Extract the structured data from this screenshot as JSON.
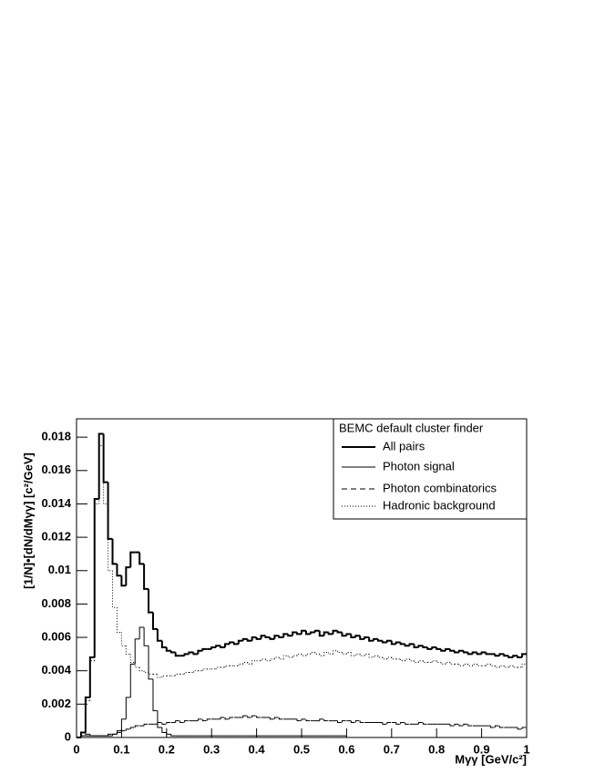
{
  "chart_data": {
    "type": "histogram",
    "x_label": "Mγγ  [GeV/c²]",
    "y_label": "[1/N]•[dN/dMγγ]  [c²/GeV]",
    "legend_title": "BEMC default cluster finder",
    "legend_position": "upper right",
    "xlim": [
      0,
      1
    ],
    "ylim": [
      0,
      0.0191
    ],
    "xticks": [
      0,
      0.1,
      0.2,
      0.3,
      0.4,
      0.5,
      0.6,
      0.7,
      0.8,
      0.9,
      1
    ],
    "yticks": [
      0,
      0.002,
      0.004,
      0.006,
      0.008,
      0.01,
      0.012,
      0.014,
      0.016,
      0.018
    ],
    "bins": [
      0,
      0.01,
      0.02,
      0.03,
      0.04,
      0.05,
      0.06,
      0.07,
      0.08,
      0.09,
      0.1,
      0.11,
      0.12,
      0.13,
      0.14,
      0.15,
      0.16,
      0.17,
      0.18,
      0.19,
      0.2,
      0.21,
      0.22,
      0.23,
      0.24,
      0.25,
      0.26,
      0.27,
      0.28,
      0.29,
      0.3,
      0.31,
      0.32,
      0.33,
      0.34,
      0.35,
      0.36,
      0.37,
      0.38,
      0.39,
      0.4,
      0.41,
      0.42,
      0.43,
      0.44,
      0.45,
      0.46,
      0.47,
      0.48,
      0.49,
      0.5,
      0.51,
      0.52,
      0.53,
      0.54,
      0.55,
      0.56,
      0.57,
      0.58,
      0.59,
      0.6,
      0.61,
      0.62,
      0.63,
      0.64,
      0.65,
      0.66,
      0.67,
      0.68,
      0.69,
      0.7,
      0.71,
      0.72,
      0.73,
      0.74,
      0.75,
      0.76,
      0.77,
      0.78,
      0.79,
      0.8,
      0.81,
      0.82,
      0.83,
      0.84,
      0.85,
      0.86,
      0.87,
      0.88,
      0.89,
      0.9,
      0.91,
      0.92,
      0.93,
      0.94,
      0.95,
      0.96,
      0.97,
      0.98,
      0.99,
      1
    ],
    "series": [
      {
        "name": "All pairs",
        "color": "#000000",
        "style": "solid",
        "width": 2,
        "values": [
          0,
          0.0003,
          0.0024,
          0.0048,
          0.0143,
          0.0182,
          0.0153,
          0.0119,
          0.0104,
          0.0097,
          0.0091,
          0.0102,
          0.0111,
          0.0111,
          0.0104,
          0.0089,
          0.0075,
          0.0065,
          0.0058,
          0.0054,
          0.0052,
          0.0051,
          0.0049,
          0.0049,
          0.005,
          0.0051,
          0.005,
          0.0052,
          0.0053,
          0.0053,
          0.0054,
          0.0055,
          0.0054,
          0.0056,
          0.0057,
          0.0056,
          0.0058,
          0.0059,
          0.0058,
          0.006,
          0.0059,
          0.0061,
          0.006,
          0.0059,
          0.0061,
          0.006,
          0.0062,
          0.0061,
          0.0063,
          0.0062,
          0.0064,
          0.0062,
          0.0063,
          0.0064,
          0.0061,
          0.0063,
          0.0062,
          0.0064,
          0.0063,
          0.0061,
          0.0062,
          0.006,
          0.0061,
          0.0059,
          0.006,
          0.0058,
          0.0059,
          0.0058,
          0.0057,
          0.0058,
          0.0056,
          0.0057,
          0.0056,
          0.0055,
          0.0056,
          0.0054,
          0.0055,
          0.0054,
          0.0053,
          0.0054,
          0.0053,
          0.0052,
          0.0053,
          0.0052,
          0.0051,
          0.0052,
          0.0051,
          0.005,
          0.0051,
          0.005,
          0.0051,
          0.005,
          0.005,
          0.0049,
          0.005,
          0.0049,
          0.0048,
          0.0049,
          0.0048,
          0.005
        ]
      },
      {
        "name": "Photon signal",
        "color": "#000000",
        "style": "solid",
        "width": 1,
        "values": [
          0,
          0.0003,
          0.0002,
          0.0001,
          0.0001,
          0.0001,
          0.0001,
          0.0001,
          0.0002,
          0.0004,
          0.0011,
          0.0024,
          0.0044,
          0.0059,
          0.0066,
          0.0055,
          0.0035,
          0.0016,
          0.0006,
          0.0003,
          0.0002,
          0.0001,
          0.0001,
          0.0001,
          0.0001,
          0.0001,
          0.0001,
          0.0001,
          0.0001,
          0.0001,
          0.0001,
          0.0001,
          0.0001,
          0.0001,
          0.0001,
          0.0001,
          0.0001,
          0.0001,
          0.0001,
          0.0001,
          0.0001,
          0.0001,
          0.0001,
          0.0001,
          0.0001,
          0.0001,
          0.0001,
          0.0001,
          0.0001,
          0.0001,
          0.0001,
          0.0001,
          0.0001,
          0.0001,
          0.0001,
          0.0001,
          0.0001,
          0.0001,
          0.0001,
          0.0001,
          0,
          0,
          0,
          0,
          0,
          0,
          0,
          0,
          0,
          0,
          0,
          0,
          0,
          0,
          0,
          0,
          0,
          0,
          0,
          0,
          0,
          0,
          0,
          0,
          0,
          0,
          0,
          0,
          0,
          0,
          0,
          0,
          0,
          0,
          0,
          0,
          0,
          0,
          0,
          0
        ]
      },
      {
        "name": "Photon combinatorics",
        "color": "#000000",
        "style": "dashed",
        "width": 1,
        "values": [
          0,
          0.0001,
          0.0001,
          0.0001,
          0.0001,
          0.0001,
          0.0001,
          0.0002,
          0.0002,
          0.0003,
          0.0004,
          0.0005,
          0.0006,
          0.0007,
          0.0007,
          0.0008,
          0.0008,
          0.0008,
          0.0009,
          0.0008,
          0.0009,
          0.0009,
          0.001,
          0.0009,
          0.001,
          0.001,
          0.001,
          0.0011,
          0.001,
          0.0011,
          0.0011,
          0.0011,
          0.0012,
          0.0011,
          0.0012,
          0.0012,
          0.0012,
          0.0013,
          0.0012,
          0.0013,
          0.0012,
          0.0012,
          0.0012,
          0.0011,
          0.0012,
          0.0011,
          0.0011,
          0.0011,
          0.0011,
          0.001,
          0.0011,
          0.001,
          0.001,
          0.001,
          0.0011,
          0.001,
          0.001,
          0.001,
          0.0009,
          0.001,
          0.001,
          0.0009,
          0.001,
          0.0009,
          0.0009,
          0.0009,
          0.0009,
          0.0009,
          0.0008,
          0.0009,
          0.0009,
          0.0008,
          0.0009,
          0.0008,
          0.0008,
          0.0008,
          0.0009,
          0.0008,
          0.0008,
          0.0008,
          0.0008,
          0.0008,
          0.0008,
          0.0007,
          0.0008,
          0.0007,
          0.0008,
          0.0007,
          0.0007,
          0.0007,
          0.0007,
          0.0007,
          0.0006,
          0.0007,
          0.0006,
          0.0006,
          0.0006,
          0.0006,
          0.0005,
          0.0006
        ]
      },
      {
        "name": "Hadronic background",
        "color": "#000000",
        "style": "dotted",
        "width": 1,
        "values": [
          0,
          0.0001,
          0.0022,
          0.0046,
          0.014,
          0.0175,
          0.014,
          0.01,
          0.0078,
          0.0063,
          0.0055,
          0.005,
          0.0045,
          0.0042,
          0.004,
          0.0039,
          0.0038,
          0.0038,
          0.0036,
          0.0037,
          0.0037,
          0.0037,
          0.0038,
          0.0038,
          0.0039,
          0.0039,
          0.004,
          0.004,
          0.0041,
          0.0041,
          0.0041,
          0.0042,
          0.0042,
          0.0043,
          0.0043,
          0.0043,
          0.0044,
          0.0045,
          0.0044,
          0.0046,
          0.0046,
          0.0047,
          0.0046,
          0.0047,
          0.0048,
          0.0047,
          0.0049,
          0.0048,
          0.0049,
          0.005,
          0.0049,
          0.005,
          0.0051,
          0.005,
          0.0049,
          0.0051,
          0.005,
          0.0052,
          0.0051,
          0.005,
          0.0051,
          0.0049,
          0.005,
          0.0049,
          0.005,
          0.0048,
          0.0049,
          0.0048,
          0.0047,
          0.0048,
          0.0047,
          0.0047,
          0.0046,
          0.0047,
          0.0046,
          0.0045,
          0.0046,
          0.0045,
          0.0045,
          0.0046,
          0.0045,
          0.0044,
          0.0045,
          0.0044,
          0.0044,
          0.0043,
          0.0044,
          0.0043,
          0.0044,
          0.0043,
          0.0043,
          0.0044,
          0.0043,
          0.0042,
          0.0043,
          0.0042,
          0.0043,
          0.0042,
          0.0042,
          0.0044
        ]
      }
    ]
  }
}
